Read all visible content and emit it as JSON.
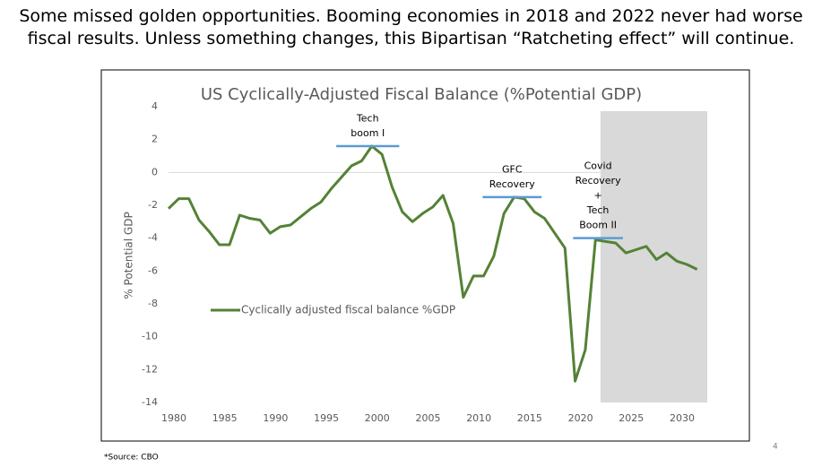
{
  "heading": [
    "Some missed golden opportunities. Booming economies in 2018 and 2022 never had worse",
    "fiscal results. Unless something changes, this Bipartisan “Ratcheting effect” will continue."
  ],
  "source": "*Source: CBO",
  "page_number": "4",
  "chart_data": {
    "type": "line",
    "title": "US Cyclically-Adjusted Fiscal Balance (%Potential GDP)",
    "y_label": "% Potential GDP",
    "x": [
      1980,
      1981,
      1982,
      1983,
      1984,
      1985,
      1986,
      1987,
      1988,
      1989,
      1990,
      1991,
      1992,
      1993,
      1994,
      1995,
      1996,
      1997,
      1998,
      1999,
      2000,
      2001,
      2002,
      2003,
      2004,
      2005,
      2006,
      2007,
      2008,
      2009,
      2010,
      2011,
      2012,
      2013,
      2014,
      2015,
      2016,
      2017,
      2018,
      2019,
      2020,
      2021,
      2022,
      2023,
      2024,
      2025,
      2026,
      2027,
      2028,
      2029,
      2030,
      2031,
      2032
    ],
    "series": [
      {
        "name": "Cyclically adjusted fiscal balance %GDP",
        "color": "#548235",
        "values": [
          -2.2,
          -1.6,
          -1.6,
          -2.9,
          -3.6,
          -4.4,
          -4.4,
          -2.6,
          -2.8,
          -2.9,
          -3.7,
          -3.3,
          -3.2,
          -2.7,
          -2.2,
          -1.8,
          -1.0,
          -0.3,
          0.4,
          0.7,
          1.6,
          1.1,
          -0.9,
          -2.4,
          -3.0,
          -2.5,
          -2.1,
          -1.4,
          -3.1,
          -7.6,
          -6.3,
          -6.3,
          -5.1,
          -2.5,
          -1.5,
          -1.6,
          -2.4,
          -2.8,
          -3.7,
          -4.6,
          -12.7,
          -10.8,
          -4.1,
          -4.2,
          -4.3,
          -4.9,
          -4.7,
          -4.5,
          -5.3,
          -4.9,
          -5.4,
          -5.6,
          -5.9
        ]
      }
    ],
    "xlim": [
      1980,
      2033
    ],
    "xticks": [
      1980,
      1985,
      1990,
      1995,
      2000,
      2005,
      2010,
      2015,
      2020,
      2025,
      2030
    ],
    "ylim": [
      -14,
      4
    ],
    "yticks": [
      -14,
      -12,
      -10,
      -8,
      -6,
      -4,
      -2,
      0,
      2,
      4
    ],
    "shade": {
      "x": [
        2022.5,
        2033
      ],
      "color": "#d9d9d9"
    },
    "annotations": [
      {
        "lines": [
          "Tech",
          "boom I"
        ],
        "x": [
          1996.5,
          2002.7
        ],
        "y": 1.6,
        "color": "#5b9bd5"
      },
      {
        "lines": [
          "GFC",
          "Recovery"
        ],
        "x": [
          2010.9,
          2016.7
        ],
        "y": -1.5,
        "color": "#5b9bd5"
      },
      {
        "lines": [
          "Covid",
          "Recovery",
          "+",
          "Tech",
          "Boom II"
        ],
        "x": [
          2019.8,
          2024.7
        ],
        "y": -4.0,
        "color": "#5b9bd5"
      }
    ],
    "legend": "left"
  }
}
